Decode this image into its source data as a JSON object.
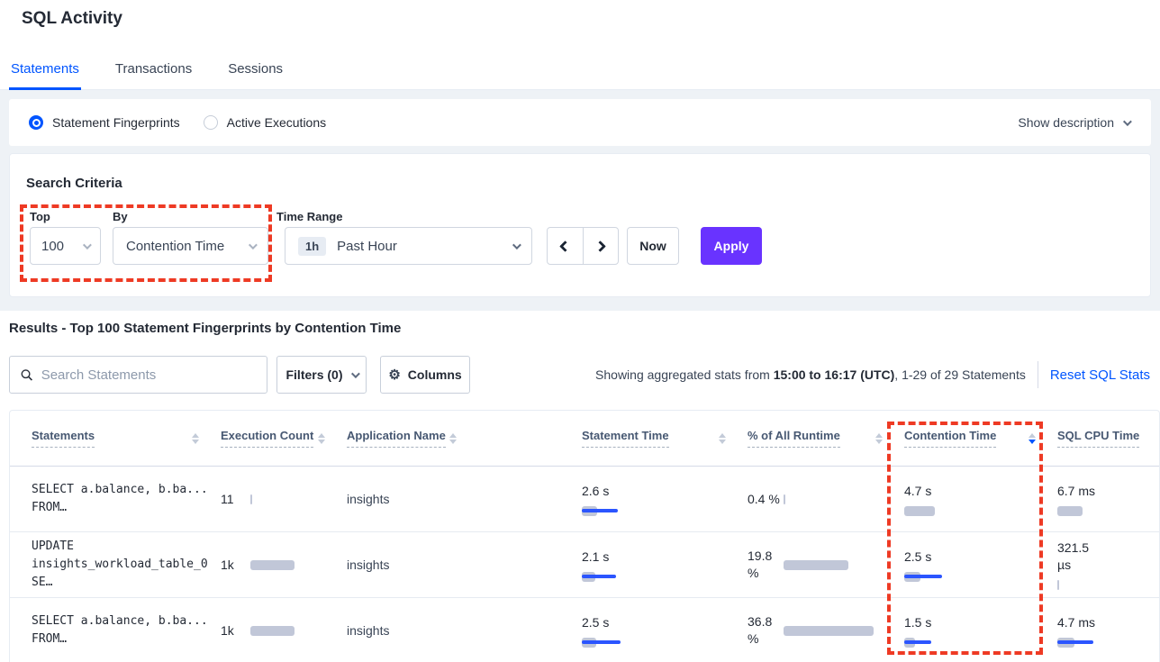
{
  "page_title": "SQL Activity",
  "tabs": {
    "items": [
      {
        "label": "Statements",
        "active": true
      },
      {
        "label": "Transactions",
        "active": false
      },
      {
        "label": "Sessions",
        "active": false
      }
    ]
  },
  "view_mode": {
    "statement_fingerprints_label": "Statement Fingerprints",
    "active_executions_label": "Active Executions",
    "show_description_label": "Show description"
  },
  "search_criteria": {
    "heading": "Search Criteria",
    "top_label": "Top",
    "top_value": "100",
    "by_label": "By",
    "by_value": "Contention Time",
    "time_range_label": "Time Range",
    "time_range_badge": "1h",
    "time_range_value": "Past Hour",
    "now_label": "Now",
    "apply_label": "Apply"
  },
  "results": {
    "heading": "Results - Top 100 Statement Fingerprints by Contention Time",
    "search_placeholder": "Search Statements",
    "filters_label": "Filters (0)",
    "columns_label": "Columns",
    "stats_prefix": "Showing aggregated stats from ",
    "stats_range": "15:00 to 16:17 (UTC)",
    "stats_suffix": ", 1-29 of 29 Statements",
    "reset_label": "Reset SQL Stats"
  },
  "icons": {
    "gear": "⚙"
  },
  "colors": {
    "accent_blue": "#0055ff",
    "apply_purple": "#6933ff",
    "annotation_red": "#ee3a24",
    "bar_gray": "#c1c7d8",
    "bar_blue": "#2b55ff"
  },
  "table": {
    "columns": [
      {
        "label": "Statements",
        "sorted": "none"
      },
      {
        "label": "Execution Count",
        "sorted": "none"
      },
      {
        "label": "Application Name",
        "sorted": "none"
      },
      {
        "label": "Statement Time",
        "sorted": "none"
      },
      {
        "label": "% of All Runtime",
        "sorted": "none"
      },
      {
        "label": "Contention Time",
        "sorted": "desc"
      },
      {
        "label": "SQL CPU Time",
        "sorted": "none"
      }
    ],
    "rows": [
      {
        "statement": [
          "SELECT a.balance, b.ba...",
          "FROM…"
        ],
        "execution_count": {
          "value": "11",
          "bar": 2,
          "line": 0
        },
        "application_name": "insights",
        "statement_time": {
          "value": "2.6 s",
          "bar": 17,
          "line": 40
        },
        "pct_of_all_runtime": {
          "value": "0.4 %",
          "bar": 2,
          "line": 0
        },
        "contention_time": {
          "value": "4.7 s",
          "bar": 34,
          "line": 0
        },
        "sql_cpu_time": {
          "value": "6.7 ms",
          "bar": 28,
          "line": 0
        }
      },
      {
        "statement": [
          "UPDATE",
          "insights_workload_table_0 SE…"
        ],
        "execution_count": {
          "value": "1k",
          "bar": 49,
          "line": 0
        },
        "application_name": "insights",
        "statement_time": {
          "value": "2.1 s",
          "bar": 15,
          "line": 38
        },
        "pct_of_all_runtime": {
          "value": "19.8 %",
          "bar": 72,
          "line": 0
        },
        "contention_time": {
          "value": "2.5 s",
          "bar": 18,
          "line": 42
        },
        "sql_cpu_time": {
          "value": "321.5 µs",
          "bar": 2,
          "line": 0
        }
      },
      {
        "statement": [
          "SELECT a.balance, b.ba...",
          "FROM…"
        ],
        "execution_count": {
          "value": "1k",
          "bar": 49,
          "line": 0
        },
        "application_name": "insights",
        "statement_time": {
          "value": "2.5 s",
          "bar": 16,
          "line": 43
        },
        "pct_of_all_runtime": {
          "value": "36.8 %",
          "bar": 100,
          "line": 0
        },
        "contention_time": {
          "value": "1.5 s",
          "bar": 12,
          "line": 30
        },
        "sql_cpu_time": {
          "value": "4.7 ms",
          "bar": 19,
          "line": 40
        }
      }
    ]
  }
}
